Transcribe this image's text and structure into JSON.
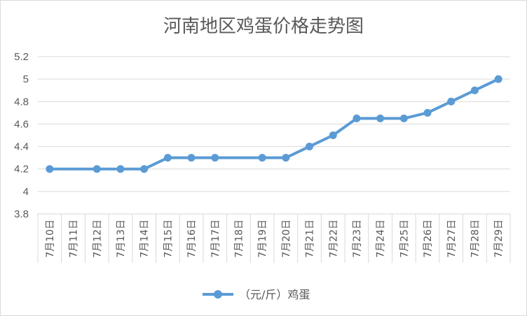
{
  "chart_data": {
    "type": "line",
    "title": "河南地区鸡蛋价格走势图",
    "categories": [
      "7月10日",
      "7月11日",
      "7月12日",
      "7月13日",
      "7月14日",
      "7月15日",
      "7月16日",
      "7月17日",
      "7月18日",
      "7月19日",
      "7月20日",
      "7月21日",
      "7月22日",
      "7月23日",
      "7月24日",
      "7月25日",
      "7月26日",
      "7月27日",
      "7月28日",
      "7月29日"
    ],
    "series": [
      {
        "name": "（元/斤）鸡蛋",
        "values": [
          4.2,
          null,
          4.2,
          4.2,
          4.2,
          4.3,
          4.3,
          4.3,
          null,
          4.3,
          4.3,
          4.4,
          4.5,
          4.65,
          4.65,
          4.65,
          4.7,
          4.8,
          4.9,
          5.0
        ]
      }
    ],
    "ylim": [
      3.8,
      5.2
    ],
    "yticks": [
      "3.8",
      "4",
      "4.2",
      "4.4",
      "4.6",
      "4.8",
      "5",
      "5.2"
    ],
    "grid": true,
    "legend": "bottom",
    "colors": {
      "series": "#5b9bd5",
      "grid": "#d9d9d9",
      "text": "#595959"
    }
  }
}
